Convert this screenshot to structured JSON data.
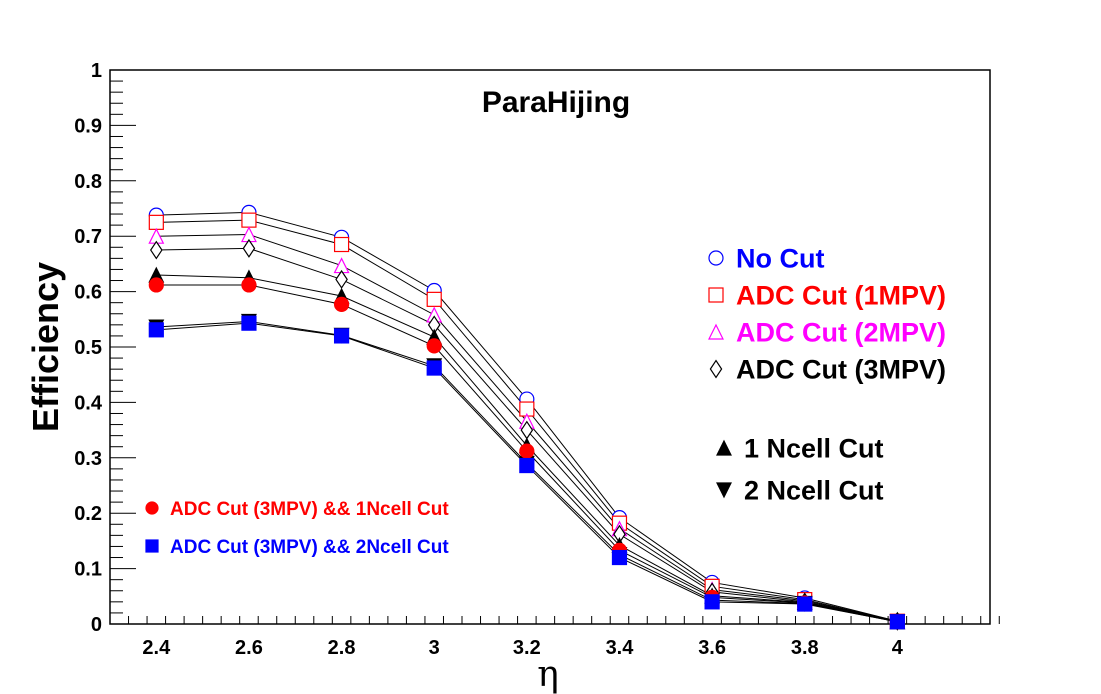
{
  "chart_data": {
    "type": "line",
    "title": "ParaHijing",
    "xlabel": "η",
    "ylabel": "Efficiency",
    "xlim": [
      2.3,
      4.2
    ],
    "ylim": [
      0,
      1
    ],
    "x_ticks": [
      "2.4",
      "2.6",
      "2.8",
      "3",
      "3.2",
      "3.4",
      "3.6",
      "3.8",
      "4"
    ],
    "y_ticks": [
      "0",
      "0.1",
      "0.2",
      "0.3",
      "0.4",
      "0.5",
      "0.6",
      "0.7",
      "0.8",
      "0.9",
      "1"
    ],
    "grid": false,
    "x": [
      2.4,
      2.6,
      2.8,
      3.0,
      3.2,
      3.4,
      3.6,
      3.8,
      4.0
    ],
    "series": [
      {
        "name": "No Cut",
        "color": "#0000ff",
        "marker": "open-circle",
        "legend_group": "right",
        "values": [
          0.738,
          0.743,
          0.698,
          0.602,
          0.406,
          0.192,
          0.075,
          0.047,
          0.005
        ]
      },
      {
        "name": "ADC Cut (1MPV)",
        "color": "#ff0000",
        "marker": "open-square",
        "legend_group": "right",
        "values": [
          0.725,
          0.729,
          0.685,
          0.586,
          0.388,
          0.182,
          0.068,
          0.044,
          0.005
        ]
      },
      {
        "name": "ADC Cut (2MPV)",
        "color": "#ff00ff",
        "marker": "open-triangle",
        "legend_group": "right",
        "values": [
          0.7,
          0.703,
          0.647,
          0.558,
          0.366,
          0.172,
          0.062,
          0.042,
          0.005
        ]
      },
      {
        "name": "ADC Cut (3MPV)",
        "color": "#000000",
        "marker": "open-diamond",
        "legend_group": "right",
        "values": [
          0.675,
          0.678,
          0.622,
          0.54,
          0.35,
          0.162,
          0.058,
          0.04,
          0.005
        ]
      },
      {
        "name": "1 Ncell Cut",
        "color": "#000000",
        "marker": "filled-triangle-up",
        "legend_group": "right-lower",
        "values": [
          0.63,
          0.625,
          0.592,
          0.518,
          0.322,
          0.142,
          0.051,
          0.039,
          0.004
        ]
      },
      {
        "name": "2 Ncell Cut",
        "color": "#000000",
        "marker": "filled-triangle-down",
        "legend_group": "right-lower",
        "values": [
          0.536,
          0.546,
          0.521,
          0.466,
          0.29,
          0.125,
          0.043,
          0.037,
          0.004
        ]
      },
      {
        "name": "ADC Cut (3MPV) && 1Ncell Cut",
        "color": "#ff0000",
        "marker": "filled-circle",
        "legend_group": "left",
        "values": [
          0.612,
          0.612,
          0.577,
          0.502,
          0.312,
          0.133,
          0.048,
          0.038,
          0.004
        ]
      },
      {
        "name": "ADC Cut (3MPV) && 2Ncell Cut",
        "color": "#0000ff",
        "marker": "filled-square",
        "legend_group": "left",
        "values": [
          0.531,
          0.543,
          0.52,
          0.462,
          0.286,
          0.12,
          0.04,
          0.036,
          0.004
        ]
      }
    ]
  }
}
